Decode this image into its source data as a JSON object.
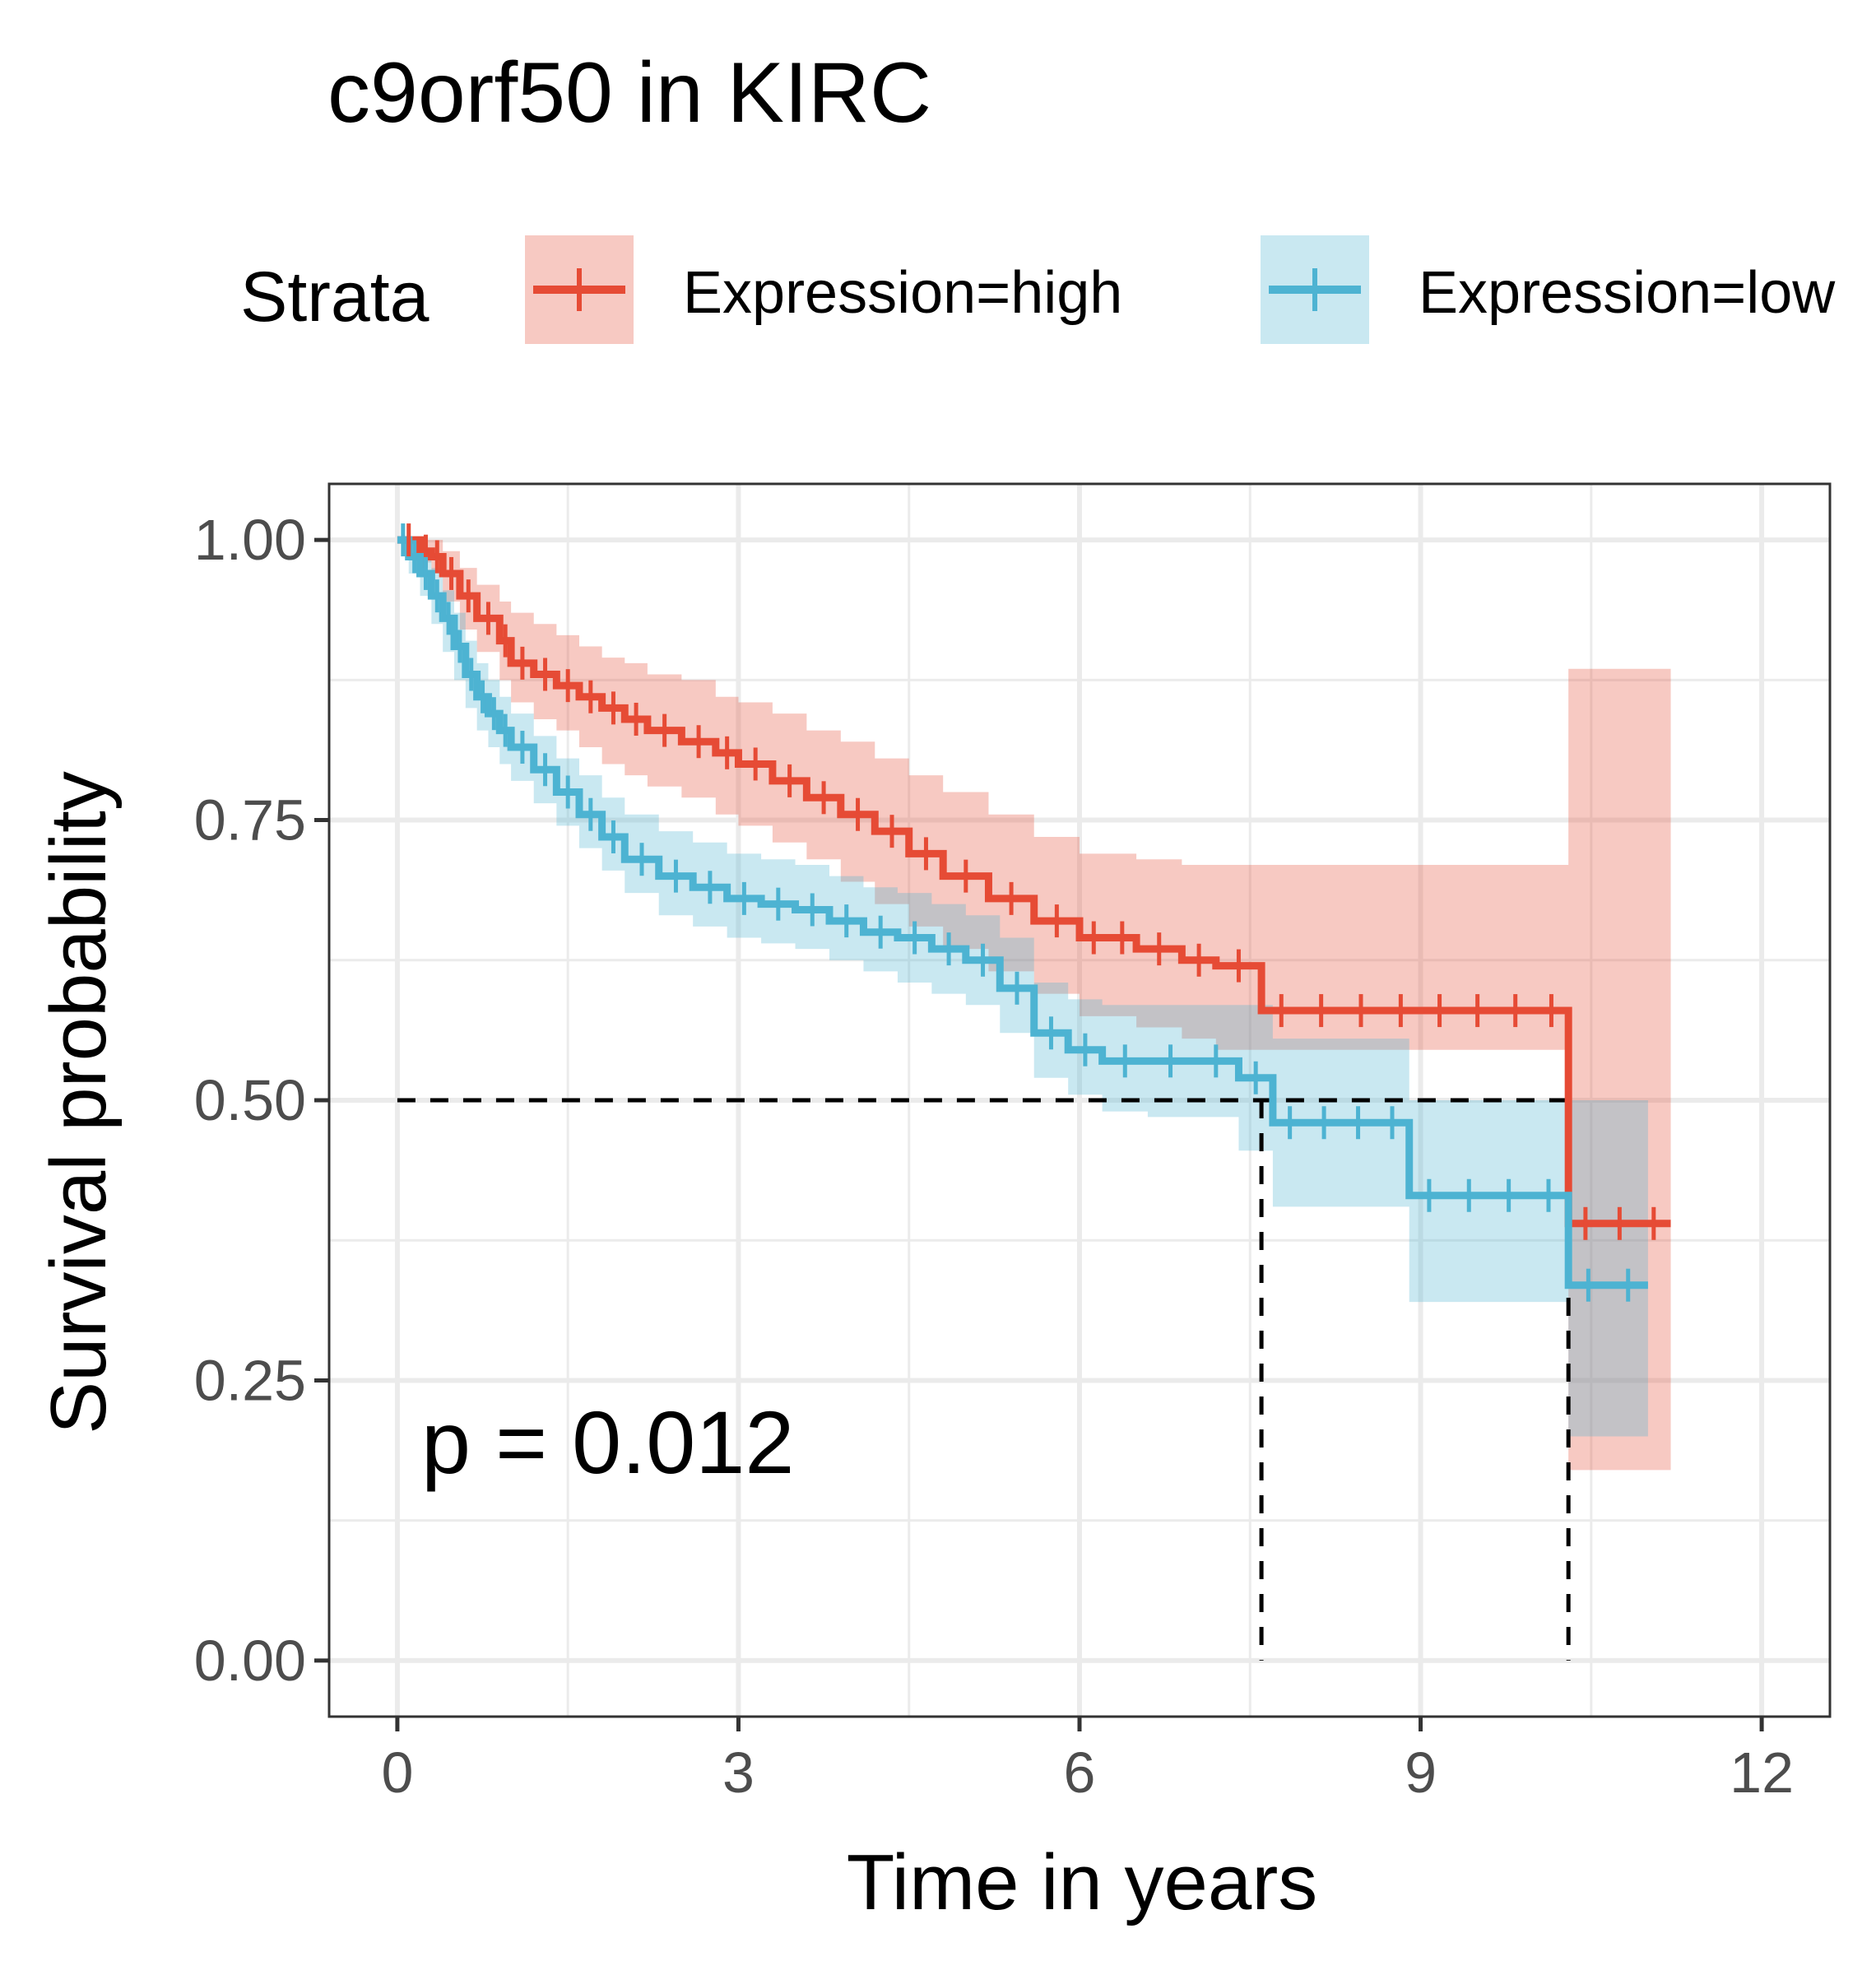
{
  "chart_data": {
    "type": "line",
    "title": "c9orf50 in KIRC",
    "xlabel": "Time in years",
    "ylabel": "Survival probability",
    "xlim": [
      -0.6,
      12.6
    ],
    "ylim": [
      -0.05,
      1.05
    ],
    "xticks": [
      0,
      3,
      6,
      9,
      12
    ],
    "xtick_labels": [
      "0",
      "3",
      "6",
      "9",
      "12"
    ],
    "yticks": [
      0,
      0.25,
      0.5,
      0.75,
      1.0
    ],
    "ytick_labels": [
      "0.00",
      "0.25",
      "0.50",
      "0.75",
      "1.00"
    ],
    "grid": true,
    "legend": {
      "title": "Strata",
      "position": "top",
      "entries": [
        "Expression=high",
        "Expression=low"
      ]
    },
    "annotation": "p = 0.012",
    "median_survival": [
      {
        "series": "Expression=low",
        "x": 7.6,
        "y": 0.5
      },
      {
        "series": "Expression=high",
        "x": 10.3,
        "y": 0.5
      }
    ],
    "series": [
      {
        "name": "Expression=high",
        "color": "#e64b35",
        "x": [
          0,
          0.2,
          0.3,
          0.4,
          0.55,
          0.7,
          0.9,
          1.0,
          1.2,
          1.4,
          1.6,
          1.8,
          2.0,
          2.2,
          2.5,
          2.8,
          3.0,
          3.3,
          3.6,
          3.9,
          4.2,
          4.5,
          4.8,
          5.2,
          5.6,
          6.0,
          6.5,
          6.9,
          7.2,
          7.6,
          9.0,
          10.0,
          10.3,
          11.2
        ],
        "y": [
          1.0,
          0.99,
          0.985,
          0.97,
          0.95,
          0.93,
          0.91,
          0.89,
          0.88,
          0.87,
          0.86,
          0.85,
          0.84,
          0.83,
          0.82,
          0.81,
          0.8,
          0.785,
          0.77,
          0.755,
          0.74,
          0.72,
          0.7,
          0.68,
          0.66,
          0.645,
          0.635,
          0.625,
          0.62,
          0.58,
          0.58,
          0.58,
          0.39,
          0.39
        ],
        "upper": [
          1.0,
          1.0,
          1.0,
          0.99,
          0.975,
          0.96,
          0.945,
          0.935,
          0.925,
          0.915,
          0.905,
          0.895,
          0.89,
          0.88,
          0.875,
          0.86,
          0.855,
          0.845,
          0.83,
          0.82,
          0.805,
          0.79,
          0.775,
          0.755,
          0.735,
          0.72,
          0.715,
          0.71,
          0.71,
          0.71,
          0.71,
          0.71,
          0.885,
          0.885
        ],
        "lower": [
          1.0,
          0.98,
          0.97,
          0.945,
          0.92,
          0.9,
          0.875,
          0.855,
          0.84,
          0.83,
          0.815,
          0.8,
          0.79,
          0.78,
          0.77,
          0.755,
          0.745,
          0.73,
          0.715,
          0.695,
          0.675,
          0.655,
          0.635,
          0.615,
          0.595,
          0.575,
          0.565,
          0.555,
          0.545,
          0.545,
          0.545,
          0.545,
          0.17,
          0.17
        ]
      },
      {
        "name": "Expression=low",
        "color": "#4db3d2",
        "x": [
          0,
          0.1,
          0.2,
          0.3,
          0.4,
          0.5,
          0.6,
          0.7,
          0.8,
          0.9,
          1.0,
          1.2,
          1.4,
          1.6,
          1.8,
          2.0,
          2.3,
          2.6,
          2.9,
          3.2,
          3.5,
          3.8,
          4.1,
          4.4,
          4.7,
          5.0,
          5.3,
          5.6,
          5.9,
          6.2,
          6.6,
          7.0,
          7.4,
          7.7,
          8.6,
          8.9,
          10.3,
          11.0
        ],
        "y": [
          1.0,
          0.985,
          0.97,
          0.95,
          0.93,
          0.905,
          0.88,
          0.86,
          0.845,
          0.83,
          0.815,
          0.795,
          0.775,
          0.755,
          0.735,
          0.715,
          0.7,
          0.69,
          0.68,
          0.675,
          0.67,
          0.66,
          0.65,
          0.645,
          0.635,
          0.625,
          0.6,
          0.56,
          0.545,
          0.535,
          0.535,
          0.535,
          0.52,
          0.48,
          0.48,
          0.415,
          0.335,
          0.335
        ],
        "upper": [
          1.0,
          1.0,
          0.99,
          0.975,
          0.955,
          0.935,
          0.91,
          0.89,
          0.875,
          0.86,
          0.845,
          0.825,
          0.805,
          0.79,
          0.77,
          0.755,
          0.74,
          0.73,
          0.72,
          0.715,
          0.71,
          0.7,
          0.69,
          0.685,
          0.675,
          0.665,
          0.645,
          0.605,
          0.59,
          0.585,
          0.585,
          0.585,
          0.585,
          0.555,
          0.555,
          0.5,
          0.5,
          0.5
        ],
        "lower": [
          1.0,
          0.97,
          0.95,
          0.925,
          0.9,
          0.875,
          0.85,
          0.83,
          0.815,
          0.8,
          0.785,
          0.765,
          0.745,
          0.725,
          0.705,
          0.685,
          0.665,
          0.655,
          0.645,
          0.64,
          0.635,
          0.625,
          0.615,
          0.605,
          0.595,
          0.585,
          0.56,
          0.52,
          0.505,
          0.49,
          0.485,
          0.485,
          0.455,
          0.405,
          0.405,
          0.32,
          0.2,
          0.2
        ]
      }
    ]
  }
}
